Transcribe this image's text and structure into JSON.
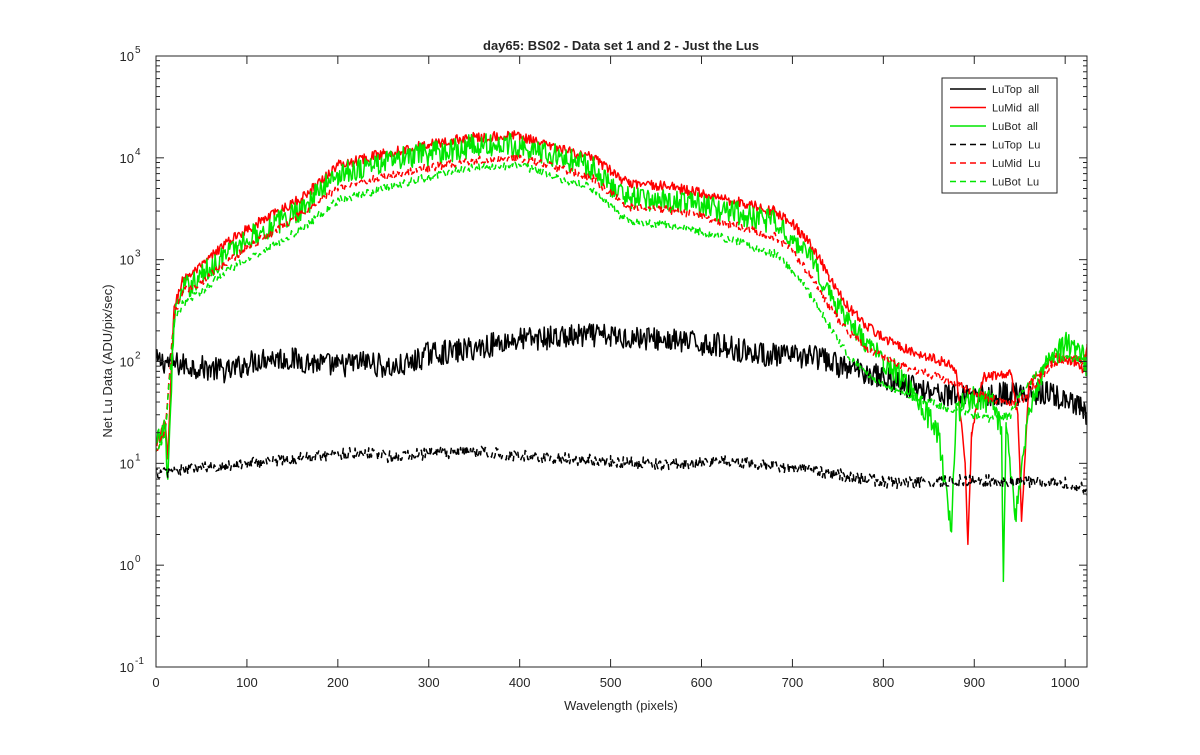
{
  "chart_data": {
    "type": "line",
    "title": "day65: BS02 - Data set 1 and 2 - Just the Lus",
    "xlabel": "Wavelength (pixels)",
    "ylabel": "Net Lu Data (ADU/pix/sec)",
    "xlim": [
      0,
      1024
    ],
    "ylim": [
      0.1,
      100000
    ],
    "yscale": "log",
    "grid": false,
    "legend_location": "top-right",
    "x_ticks": [
      {
        "value": 0,
        "label": "0"
      },
      {
        "value": 100,
        "label": "100"
      },
      {
        "value": 200,
        "label": "200"
      },
      {
        "value": 300,
        "label": "300"
      },
      {
        "value": 400,
        "label": "400"
      },
      {
        "value": 500,
        "label": "500"
      },
      {
        "value": 600,
        "label": "600"
      },
      {
        "value": 700,
        "label": "700"
      },
      {
        "value": 800,
        "label": "800"
      },
      {
        "value": 900,
        "label": "900"
      },
      {
        "value": 1000,
        "label": "1000"
      }
    ],
    "y_ticks": [
      {
        "value": 0.1,
        "base": "10",
        "exp": "-1"
      },
      {
        "value": 1,
        "base": "10",
        "exp": "0"
      },
      {
        "value": 10,
        "base": "10",
        "exp": "1"
      },
      {
        "value": 100,
        "base": "10",
        "exp": "2"
      },
      {
        "value": 1000,
        "base": "10",
        "exp": "3"
      },
      {
        "value": 10000,
        "base": "10",
        "exp": "4"
      },
      {
        "value": 100000,
        "base": "10",
        "exp": "5"
      }
    ],
    "series": [
      {
        "name": "LuTop  all",
        "color": "#000000",
        "dash": "solid",
        "x": [
          0,
          10,
          20,
          40,
          60,
          80,
          100,
          120,
          150,
          180,
          200,
          230,
          260,
          280,
          300,
          330,
          360,
          380,
          400,
          430,
          460,
          480,
          500,
          540,
          580,
          620,
          660,
          700,
          720,
          740,
          760,
          780,
          800,
          820,
          840,
          860,
          880,
          900,
          920,
          940,
          960,
          980,
          1000,
          1015,
          1024
        ],
        "y": [
          100,
          100,
          95,
          90,
          85,
          80,
          95,
          110,
          105,
          95,
          90,
          100,
          85,
          95,
          120,
          125,
          140,
          155,
          165,
          170,
          175,
          180,
          175,
          170,
          155,
          145,
          120,
          110,
          115,
          100,
          85,
          80,
          70,
          60,
          55,
          50,
          45,
          50,
          45,
          50,
          45,
          50,
          40,
          35,
          30
        ],
        "noise": 0.12
      },
      {
        "name": "LuMid  all",
        "color": "#ff0000",
        "dash": "solid",
        "x": [
          0,
          10,
          13,
          20,
          30,
          50,
          70,
          100,
          130,
          160,
          200,
          250,
          300,
          350,
          400,
          420,
          440,
          480,
          500,
          520,
          560,
          600,
          650,
          680,
          700,
          720,
          740,
          760,
          780,
          800,
          820,
          850,
          870,
          880,
          890,
          893,
          897,
          910,
          940,
          948,
          952,
          960,
          990,
          1010,
          1020,
          1024
        ],
        "y": [
          15,
          25,
          12,
          350,
          650,
          850,
          1300,
          2000,
          2800,
          4000,
          8500,
          11000,
          13500,
          16000,
          16500,
          14000,
          12500,
          10000,
          7500,
          5500,
          5300,
          4500,
          3500,
          3000,
          2300,
          1400,
          700,
          350,
          230,
          170,
          140,
          110,
          95,
          80,
          10,
          1.6,
          20,
          70,
          75,
          30,
          2.7,
          60,
          110,
          100,
          80,
          140
        ],
        "noise": 0.05
      },
      {
        "name": "LuBot  all",
        "color": "#00e600",
        "dash": "solid",
        "x": [
          0,
          10,
          13,
          20,
          30,
          50,
          70,
          100,
          130,
          160,
          200,
          250,
          300,
          350,
          400,
          420,
          440,
          480,
          500,
          520,
          560,
          600,
          650,
          680,
          700,
          720,
          740,
          760,
          780,
          800,
          820,
          840,
          860,
          875,
          880,
          890,
          900,
          920,
          930,
          932,
          935,
          945,
          960,
          980,
          1000,
          1015,
          1024
        ],
        "y": [
          15,
          22,
          7,
          280,
          500,
          700,
          1000,
          1600,
          2200,
          3200,
          7000,
          9000,
          11000,
          13000,
          13500,
          11500,
          10500,
          8000,
          5500,
          4000,
          3900,
          3400,
          2700,
          2300,
          1700,
          1000,
          500,
          250,
          150,
          100,
          70,
          40,
          20,
          2.3,
          30,
          40,
          45,
          40,
          20,
          0.8,
          25,
          2.8,
          35,
          100,
          150,
          140,
          90
        ],
        "noise": 0.12
      },
      {
        "name": "LuTop  Lu",
        "color": "#000000",
        "dash": "dashed",
        "x": [
          0,
          20,
          50,
          100,
          150,
          200,
          230,
          260,
          300,
          350,
          380,
          420,
          460,
          500,
          540,
          580,
          620,
          660,
          700,
          740,
          780,
          800,
          820,
          860,
          900,
          940,
          980,
          1000,
          1024
        ],
        "y": [
          8,
          8.5,
          9,
          10,
          11,
          12.5,
          13,
          11.5,
          12.5,
          13,
          12.5,
          11.5,
          11,
          10.5,
          10,
          9.8,
          10.5,
          9.8,
          9,
          8,
          7,
          6.5,
          6.5,
          6.5,
          7,
          6.5,
          6.5,
          6.5,
          5.5
        ],
        "noise": 0.06
      },
      {
        "name": "LuMid  Lu",
        "color": "#ff0000",
        "dash": "dashed",
        "x": [
          0,
          10,
          20,
          30,
          50,
          70,
          100,
          130,
          160,
          200,
          250,
          300,
          350,
          400,
          420,
          440,
          480,
          500,
          520,
          560,
          600,
          650,
          680,
          700,
          720,
          740,
          760,
          780,
          800,
          820,
          850,
          870,
          900,
          930,
          950,
          960,
          990,
          1010,
          1020,
          1024
        ],
        "y": [
          13,
          20,
          280,
          500,
          600,
          850,
          1300,
          1900,
          2800,
          5000,
          6500,
          8000,
          9500,
          10000,
          9000,
          8000,
          6300,
          4500,
          3300,
          3100,
          2700,
          2000,
          1700,
          1200,
          700,
          350,
          200,
          140,
          110,
          90,
          75,
          65,
          50,
          40,
          40,
          50,
          100,
          110,
          100,
          120
        ],
        "noise": 0.04
      },
      {
        "name": "LuBot  Lu",
        "color": "#00e600",
        "dash": "dashed",
        "x": [
          0,
          10,
          20,
          30,
          50,
          70,
          100,
          130,
          160,
          200,
          250,
          300,
          350,
          400,
          420,
          440,
          480,
          500,
          520,
          560,
          600,
          650,
          680,
          700,
          720,
          740,
          760,
          780,
          800,
          820,
          850,
          870,
          900,
          920,
          940,
          950,
          960,
          980,
          1000,
          1020,
          1024
        ],
        "y": [
          13,
          18,
          250,
          380,
          480,
          700,
          1000,
          1400,
          2000,
          3800,
          5000,
          6500,
          8000,
          8500,
          7500,
          6500,
          5000,
          3300,
          2300,
          2200,
          1900,
          1400,
          1150,
          800,
          450,
          230,
          120,
          80,
          60,
          50,
          40,
          35,
          30,
          27,
          30,
          50,
          60,
          100,
          110,
          100,
          115
        ],
        "noise": 0.04
      }
    ]
  }
}
